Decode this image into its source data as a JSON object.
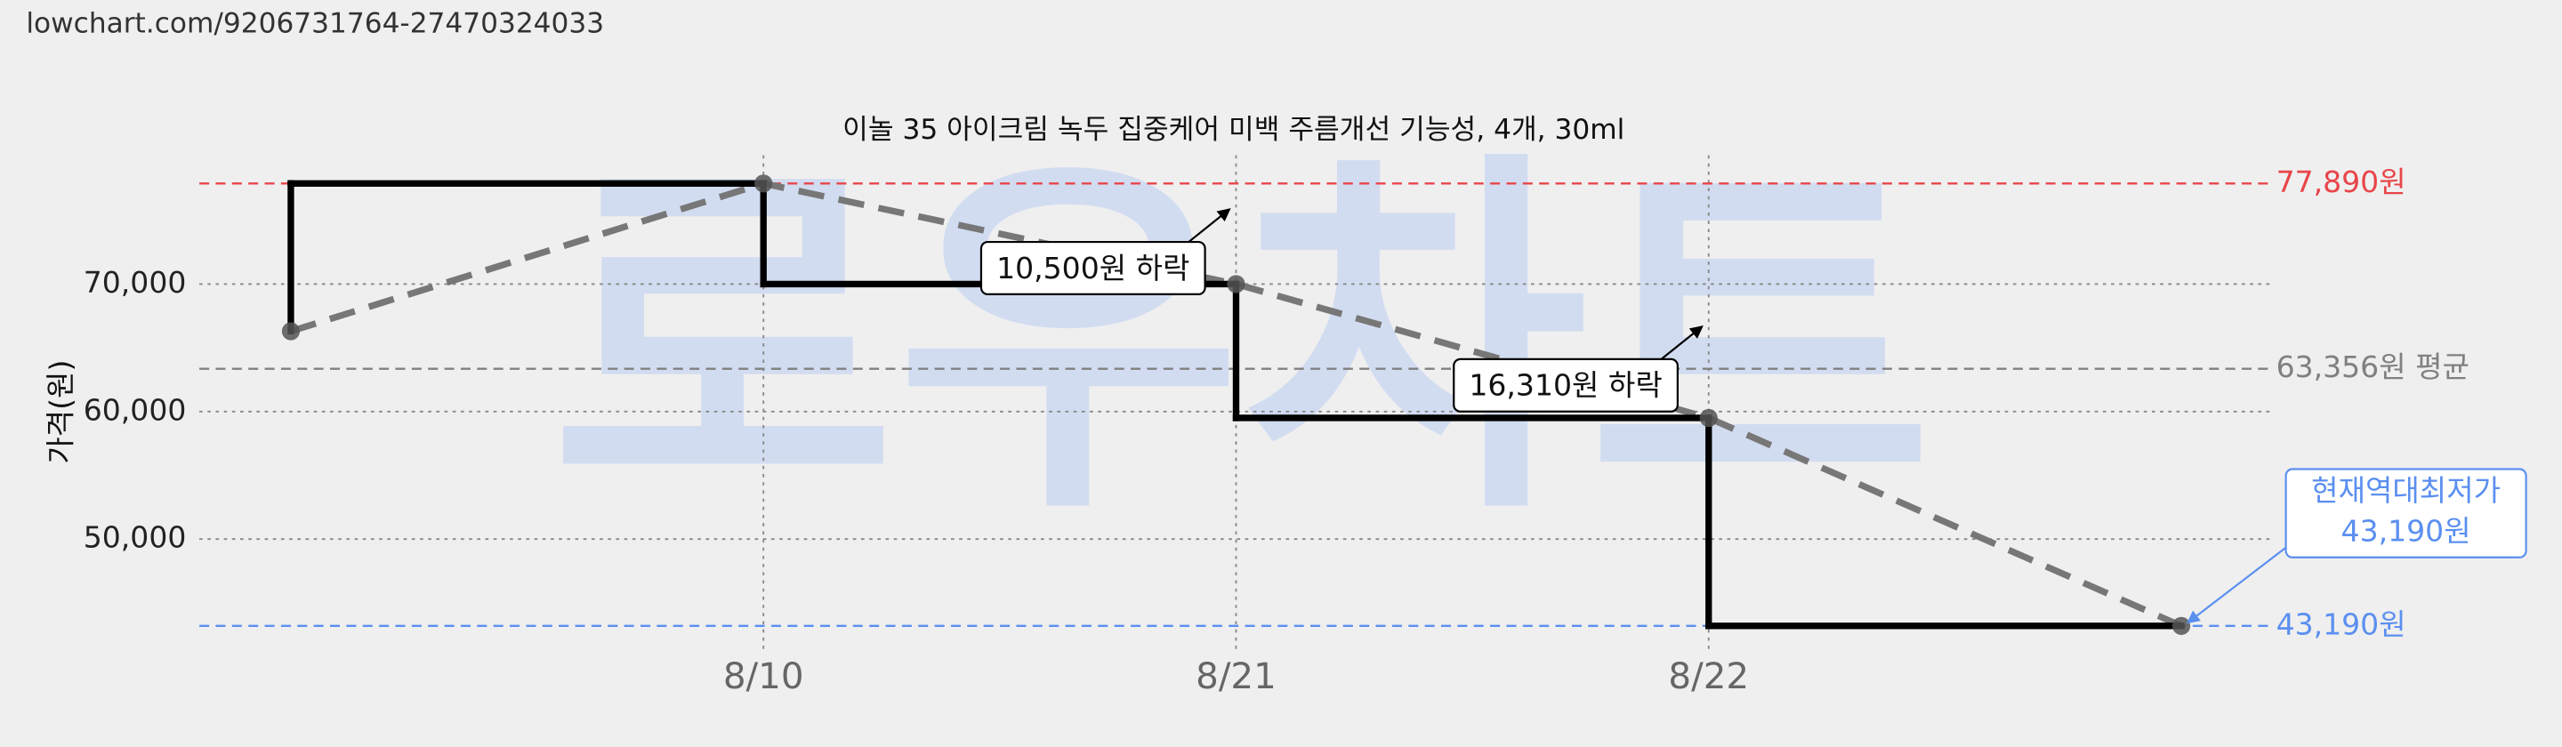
{
  "url": "lowchart.com/9206731764-27470324033",
  "watermark": "로우차트",
  "chart_data": {
    "type": "step",
    "title": "이놀 35 아이크림 녹두 집중케어 미백 주름개선 기능성, 4개, 30ml",
    "y_label": "가격(원)",
    "categories": [
      null,
      "8/10",
      "8/21",
      "8/22",
      null
    ],
    "values": [
      66300,
      77890,
      70000,
      59500,
      43190
    ],
    "color": "#000000",
    "trend_color": "#777777",
    "ylim": [
      41000,
      80100
    ],
    "yticks": [
      {
        "value": 50000,
        "label": "50,000"
      },
      {
        "value": 60000,
        "label": "60,000"
      },
      {
        "value": 70000,
        "label": "70,000"
      }
    ],
    "grid": true,
    "reference_lines": [
      {
        "value": 77890,
        "label": "77,890원",
        "color": "#e8454a"
      },
      {
        "value": 63356,
        "label": "63,356원 평균",
        "color": "#808080"
      },
      {
        "value": 43190,
        "label": "43,190원",
        "color": "#5b8ff0"
      }
    ],
    "annotations": [
      {
        "text": "10,500원 하락",
        "index": 2
      },
      {
        "text": "16,310원 하락",
        "index": 3
      },
      {
        "text": [
          "현재역대최저가",
          "43,190원"
        ],
        "index": 4,
        "color": "#5b8ff0"
      }
    ]
  }
}
